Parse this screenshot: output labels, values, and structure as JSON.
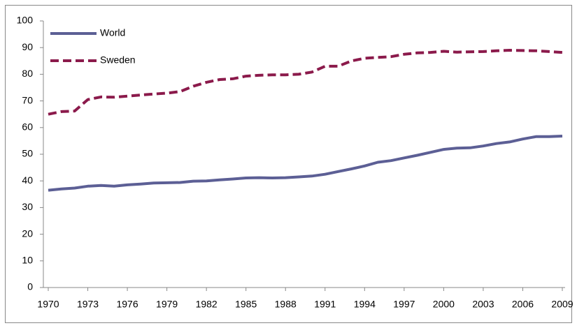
{
  "chart_data": {
    "type": "line",
    "x": [
      1970,
      1971,
      1972,
      1973,
      1974,
      1975,
      1976,
      1977,
      1978,
      1979,
      1980,
      1981,
      1982,
      1983,
      1984,
      1985,
      1986,
      1987,
      1988,
      1989,
      1990,
      1991,
      1992,
      1993,
      1994,
      1995,
      1996,
      1997,
      1998,
      1999,
      2000,
      2001,
      2002,
      2003,
      2004,
      2005,
      2006,
      2007,
      2008,
      2009
    ],
    "series": [
      {
        "name": "World",
        "color": "#5c5f95",
        "dash": false,
        "values": [
          36.5,
          37,
          37.3,
          38,
          38.3,
          38,
          38.5,
          38.8,
          39.2,
          39.3,
          39.4,
          39.9,
          40,
          40.4,
          40.7,
          41.1,
          41.2,
          41.1,
          41.2,
          41.5,
          41.8,
          42.5,
          43.5,
          44.5,
          45.6,
          47,
          47.6,
          48.6,
          49.6,
          50.7,
          51.8,
          52.3,
          52.4,
          53.1,
          54,
          54.6,
          55.7,
          56.6,
          56.6,
          56.8
        ]
      },
      {
        "name": "Sweden",
        "color": "#8b1a4b",
        "dash": true,
        "values": [
          65,
          66,
          66.2,
          70.5,
          71.5,
          71.4,
          71.8,
          72.2,
          72.6,
          72.9,
          73.5,
          75.5,
          77,
          78,
          78.3,
          79.3,
          79.6,
          79.8,
          79.8,
          80,
          80.8,
          83,
          83,
          85,
          86,
          86.3,
          86.6,
          87.5,
          88,
          88.2,
          88.6,
          88.3,
          88.4,
          88.5,
          88.8,
          89,
          88.9,
          88.8,
          88.5,
          88.2
        ]
      }
    ],
    "xlim": [
      1970,
      2009
    ],
    "xticks": [
      1970,
      1973,
      1976,
      1979,
      1982,
      1985,
      1988,
      1991,
      1994,
      1997,
      2000,
      2003,
      2006,
      2009
    ],
    "ylim": [
      0,
      100
    ],
    "yticks": [
      0,
      10,
      20,
      30,
      40,
      50,
      60,
      70,
      80,
      90,
      100
    ],
    "legend": "top-left"
  }
}
